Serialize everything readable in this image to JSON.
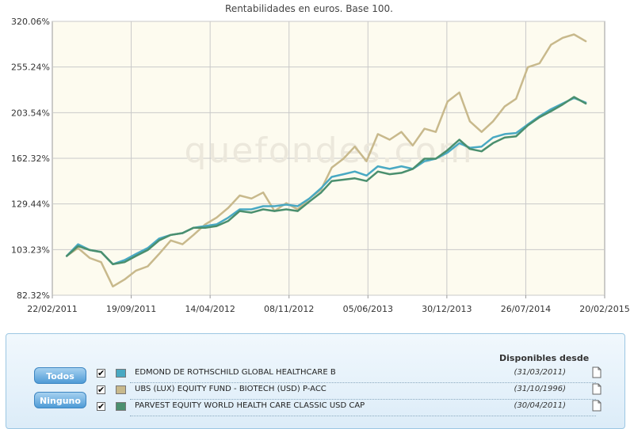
{
  "chart_data": {
    "type": "line",
    "title": "Rentabilidades en euros. Base 100.",
    "watermark": "quefondes.com",
    "x_tick_labels": [
      "22/02/2011",
      "19/09/2011",
      "14/04/2012",
      "08/11/2012",
      "05/06/2013",
      "30/12/2013",
      "26/07/2014",
      "20/02/2015"
    ],
    "y_tick_labels": [
      "320.06%",
      "255.24%",
      "203.54%",
      "162.32%",
      "129.44%",
      "103.23%",
      "82.32%"
    ],
    "y_ticks": [
      320.06,
      255.24,
      203.54,
      162.32,
      129.44,
      103.23,
      82.32
    ],
    "ylim": [
      82.32,
      320.06
    ],
    "scale": "log",
    "grid": true,
    "xlim": [
      "2011-02-22",
      "2015-02-20"
    ],
    "series": [
      {
        "name": "EDMOND DE ROTHSCHILD GLOBAL HEALTHCARE B",
        "color": "#49a9c3",
        "x": [
          "2011-04-01",
          "2011-05-01",
          "2011-06-01",
          "2011-07-01",
          "2011-08-01",
          "2011-09-01",
          "2011-10-01",
          "2011-11-01",
          "2011-12-01",
          "2012-01-01",
          "2012-02-01",
          "2012-03-01",
          "2012-04-01",
          "2012-05-01",
          "2012-06-01",
          "2012-07-01",
          "2012-08-01",
          "2012-09-01",
          "2012-10-01",
          "2012-11-01",
          "2012-12-01",
          "2013-01-01",
          "2013-02-01",
          "2013-03-01",
          "2013-04-01",
          "2013-05-01",
          "2013-06-01",
          "2013-07-01",
          "2013-08-01",
          "2013-09-01",
          "2013-10-01",
          "2013-11-01",
          "2013-12-01",
          "2014-01-01",
          "2014-02-01",
          "2014-03-01",
          "2014-04-01",
          "2014-05-01",
          "2014-06-01",
          "2014-07-01",
          "2014-08-01",
          "2014-09-01",
          "2014-10-01",
          "2014-11-01",
          "2014-12-01",
          "2015-01-01"
        ],
        "values": [
          100,
          106,
          103,
          102,
          96,
          98,
          101,
          104,
          109,
          111,
          112,
          115,
          116,
          117,
          121,
          126,
          126,
          128,
          128,
          129,
          128,
          133,
          140,
          148,
          150,
          152,
          149,
          156,
          154,
          156,
          154,
          160,
          162,
          167,
          175,
          171,
          172,
          180,
          183,
          184,
          192,
          200,
          207,
          213,
          219,
          214
        ]
      },
      {
        "name": "UBS (LUX) EQUITY FUND - BIOTECH (USD) P-ACC",
        "color": "#c8b98c",
        "x": [
          "2011-04-01",
          "2011-05-01",
          "2011-06-01",
          "2011-07-01",
          "2011-08-01",
          "2011-09-01",
          "2011-10-01",
          "2011-11-01",
          "2011-12-01",
          "2012-01-01",
          "2012-02-01",
          "2012-03-01",
          "2012-04-01",
          "2012-05-01",
          "2012-06-01",
          "2012-07-01",
          "2012-08-01",
          "2012-09-01",
          "2012-10-01",
          "2012-11-01",
          "2012-12-01",
          "2013-01-01",
          "2013-02-01",
          "2013-03-01",
          "2013-04-01",
          "2013-05-01",
          "2013-06-01",
          "2013-07-01",
          "2013-08-01",
          "2013-09-01",
          "2013-10-01",
          "2013-11-01",
          "2013-12-01",
          "2014-01-01",
          "2014-02-01",
          "2014-03-01",
          "2014-04-01",
          "2014-05-01",
          "2014-06-01",
          "2014-07-01",
          "2014-08-01",
          "2014-09-01",
          "2014-10-01",
          "2014-11-01",
          "2014-12-01",
          "2015-01-01"
        ],
        "values": [
          100,
          104,
          99,
          97,
          86,
          89,
          93,
          95,
          101,
          108,
          106,
          111,
          117,
          121,
          127,
          135,
          133,
          137,
          125,
          130,
          126,
          133,
          139,
          155,
          162,
          172,
          160,
          183,
          178,
          185,
          173,
          188,
          185,
          215,
          225,
          195,
          185,
          195,
          210,
          218,
          255,
          260,
          285,
          295,
          300,
          290
        ]
      },
      {
        "name": "PARVEST EQUITY WORLD HEALTH CARE CLASSIC USD CAP",
        "color": "#4a8f6e",
        "x": [
          "2011-04-01",
          "2011-05-01",
          "2011-06-01",
          "2011-07-01",
          "2011-08-01",
          "2011-09-01",
          "2011-10-01",
          "2011-11-01",
          "2011-12-01",
          "2012-01-01",
          "2012-02-01",
          "2012-03-01",
          "2012-04-01",
          "2012-05-01",
          "2012-06-01",
          "2012-07-01",
          "2012-08-01",
          "2012-09-01",
          "2012-10-01",
          "2012-11-01",
          "2012-12-01",
          "2013-01-01",
          "2013-02-01",
          "2013-03-01",
          "2013-04-01",
          "2013-05-01",
          "2013-06-01",
          "2013-07-01",
          "2013-08-01",
          "2013-09-01",
          "2013-10-01",
          "2013-11-01",
          "2013-12-01",
          "2014-01-01",
          "2014-02-01",
          "2014-03-01",
          "2014-04-01",
          "2014-05-01",
          "2014-06-01",
          "2014-07-01",
          "2014-08-01",
          "2014-09-01",
          "2014-10-01",
          "2014-11-01",
          "2014-12-01",
          "2015-01-01"
        ],
        "values": [
          100,
          105,
          103,
          102,
          96,
          97,
          100,
          103,
          108,
          111,
          112,
          115,
          115,
          116,
          119,
          125,
          124,
          126,
          125,
          126,
          125,
          131,
          137,
          145,
          146,
          147,
          145,
          152,
          150,
          151,
          154,
          162,
          162,
          169,
          178,
          170,
          168,
          175,
          180,
          181,
          191,
          199,
          205,
          212,
          220,
          213
        ]
      }
    ]
  },
  "controls": {
    "all_button": "Todos",
    "none_button": "Ninguno",
    "available_header": "Disponibles desde",
    "checkmark": "✔"
  },
  "funds": [
    {
      "name": "EDMOND DE ROTHSCHILD GLOBAL HEALTHCARE B",
      "since": "(31/03/2011)",
      "color": "#49a9c3",
      "checked": true
    },
    {
      "name": "UBS (LUX) EQUITY FUND - BIOTECH (USD) P-ACC",
      "since": "(31/10/1996)",
      "color": "#c8b98c",
      "checked": true
    },
    {
      "name": "PARVEST EQUITY WORLD HEALTH CARE CLASSIC USD CAP",
      "since": "(30/04/2011)",
      "color": "#4a8f6e",
      "checked": true
    }
  ]
}
